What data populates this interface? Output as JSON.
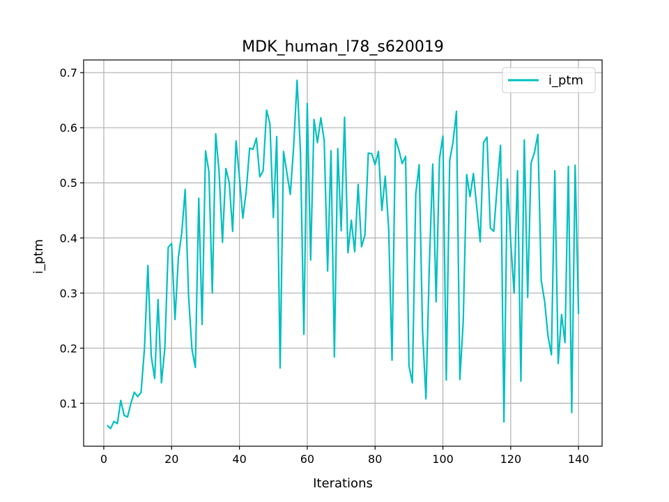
{
  "chart_data": {
    "type": "line",
    "title": "MDK_human_l78_s620019",
    "xlabel": "Iterations",
    "ylabel": "i_ptm",
    "xlim": [
      -5.95,
      146.95
    ],
    "ylim": [
      0.022,
      0.723
    ],
    "xticks": [
      0,
      20,
      40,
      60,
      80,
      100,
      120,
      140
    ],
    "yticks": [
      0.1,
      0.2,
      0.3,
      0.4,
      0.5,
      0.6,
      0.7
    ],
    "xtick_labels": [
      "0",
      "20",
      "40",
      "60",
      "80",
      "100",
      "120",
      "140"
    ],
    "ytick_labels": [
      "0.1",
      "0.2",
      "0.3",
      "0.4",
      "0.5",
      "0.6",
      "0.7"
    ],
    "grid": true,
    "legend_position": "top-right",
    "series": [
      {
        "name": "i_ptm",
        "color": "#00bfbf",
        "x": [
          1,
          2,
          3,
          4,
          5,
          6,
          7,
          8,
          9,
          10,
          11,
          12,
          13,
          14,
          15,
          16,
          17,
          18,
          19,
          20,
          21,
          22,
          23,
          24,
          25,
          26,
          27,
          28,
          29,
          30,
          31,
          32,
          33,
          34,
          35,
          36,
          37,
          38,
          39,
          40,
          41,
          42,
          43,
          44,
          45,
          46,
          47,
          48,
          49,
          50,
          51,
          52,
          53,
          54,
          55,
          56,
          57,
          58,
          59,
          60,
          61,
          62,
          63,
          64,
          65,
          66,
          67,
          68,
          69,
          70,
          71,
          72,
          73,
          74,
          75,
          76,
          77,
          78,
          79,
          80,
          81,
          82,
          83,
          84,
          85,
          86,
          87,
          88,
          89,
          90,
          91,
          92,
          93,
          94,
          95,
          96,
          97,
          98,
          99,
          100,
          101,
          102,
          103,
          104,
          105,
          106,
          107,
          108,
          109,
          110,
          111,
          112,
          113,
          114,
          115,
          116,
          117,
          118,
          119,
          120,
          121,
          122,
          123,
          124,
          125,
          126,
          127,
          128,
          129,
          130,
          131,
          132,
          133,
          134,
          135,
          136,
          137,
          138,
          139,
          140
        ],
        "y": [
          0.06,
          0.054,
          0.067,
          0.063,
          0.105,
          0.078,
          0.075,
          0.1,
          0.12,
          0.112,
          0.12,
          0.2,
          0.35,
          0.185,
          0.145,
          0.288,
          0.137,
          0.2,
          0.383,
          0.39,
          0.252,
          0.365,
          0.41,
          0.488,
          0.295,
          0.198,
          0.165,
          0.472,
          0.243,
          0.558,
          0.52,
          0.3,
          0.589,
          0.52,
          0.392,
          0.526,
          0.5,
          0.412,
          0.576,
          0.51,
          0.436,
          0.485,
          0.563,
          0.561,
          0.581,
          0.511,
          0.522,
          0.632,
          0.607,
          0.437,
          0.584,
          0.164,
          0.557,
          0.518,
          0.479,
          0.567,
          0.686,
          0.555,
          0.225,
          0.644,
          0.36,
          0.615,
          0.573,
          0.618,
          0.577,
          0.34,
          0.558,
          0.184,
          0.562,
          0.413,
          0.619,
          0.373,
          0.432,
          0.375,
          0.497,
          0.384,
          0.405,
          0.554,
          0.553,
          0.533,
          0.557,
          0.45,
          0.512,
          0.418,
          0.178,
          0.58,
          0.56,
          0.535,
          0.548,
          0.168,
          0.137,
          0.48,
          0.533,
          0.232,
          0.108,
          0.35,
          0.534,
          0.284,
          0.544,
          0.585,
          0.142,
          0.54,
          0.575,
          0.63,
          0.143,
          0.249,
          0.515,
          0.475,
          0.517,
          0.455,
          0.393,
          0.573,
          0.583,
          0.418,
          0.412,
          0.493,
          0.568,
          0.066,
          0.507,
          0.394,
          0.3,
          0.522,
          0.14,
          0.578,
          0.292,
          0.536,
          0.555,
          0.588,
          0.323,
          0.285,
          0.222,
          0.188,
          0.522,
          0.172,
          0.261,
          0.21,
          0.53,
          0.083,
          0.532,
          0.262
        ]
      }
    ]
  }
}
